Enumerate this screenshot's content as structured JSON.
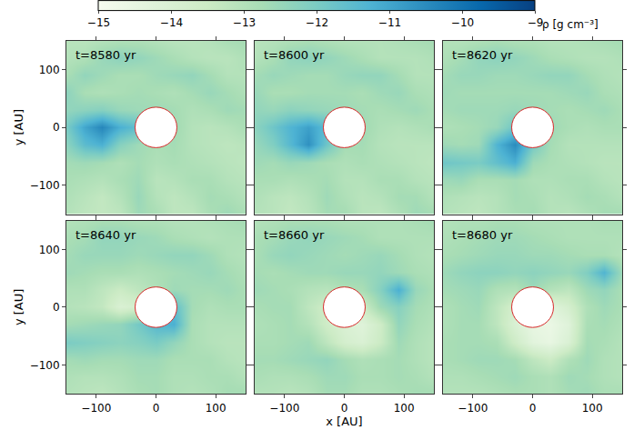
{
  "chart_data": {
    "type": "heatmap",
    "x_label": "x [AU]",
    "y_label": "y [AU]",
    "xlim": [
      -150,
      150
    ],
    "ylim": [
      -150,
      150
    ],
    "xticks": [
      -100,
      0,
      100
    ],
    "yticks": [
      -100,
      0,
      100
    ],
    "colorbar": {
      "label": "ρ [g cm⁻³]",
      "range": [
        -15,
        -9
      ],
      "ticks": [
        -15,
        -14,
        -13,
        -12,
        -11,
        -10,
        -9
      ]
    },
    "inner_boundary_radius": 35,
    "x": [
      -150,
      -120,
      -90,
      -60,
      -30,
      0,
      30,
      60,
      90,
      120,
      150
    ],
    "y": [
      -150,
      -120,
      -90,
      -60,
      -30,
      0,
      30,
      60,
      90,
      120,
      150
    ],
    "panels": [
      {
        "title": "t=8580 yr",
        "cells": [
          [
            -13.0,
            -13.2,
            -13.3,
            -13.2,
            -12.6,
            -12.8,
            -13.2,
            -13.2,
            -12.8,
            -12.6,
            -12.8
          ],
          [
            -12.9,
            -13.1,
            -13.3,
            -13.0,
            -12.5,
            -13.0,
            -13.2,
            -13.0,
            -12.7,
            -12.8,
            -13.0
          ],
          [
            -12.8,
            -12.9,
            -13.0,
            -12.8,
            -12.6,
            -13.1,
            -13.0,
            -12.8,
            -12.8,
            -13.0,
            -13.1
          ],
          [
            -12.7,
            -12.6,
            -12.7,
            -12.9,
            -12.7,
            -12.9,
            -12.8,
            -12.9,
            -13.0,
            -13.1,
            -13.2
          ],
          [
            -12.3,
            -11.5,
            -11.2,
            -12.2,
            -12.6,
            -12.8,
            -12.7,
            -13.0,
            -13.1,
            -13.2,
            -13.1
          ],
          [
            -12.0,
            -11.0,
            -10.4,
            -11.2,
            -11.6,
            -12.5,
            -12.6,
            -13.0,
            -13.1,
            -13.0,
            -12.8
          ],
          [
            -12.4,
            -12.3,
            -12.2,
            -12.5,
            -12.6,
            -12.6,
            -12.7,
            -12.9,
            -12.8,
            -12.6,
            -12.7
          ],
          [
            -12.3,
            -12.8,
            -12.9,
            -12.8,
            -12.7,
            -12.8,
            -12.9,
            -12.7,
            -12.5,
            -12.7,
            -12.9
          ],
          [
            -12.8,
            -12.4,
            -12.6,
            -12.8,
            -12.8,
            -12.6,
            -12.5,
            -12.4,
            -12.7,
            -13.0,
            -13.0
          ],
          [
            -13.0,
            -12.9,
            -12.5,
            -12.3,
            -12.4,
            -12.6,
            -12.8,
            -13.0,
            -13.1,
            -13.1,
            -12.9
          ],
          [
            -13.1,
            -13.1,
            -13.0,
            -12.9,
            -12.9,
            -13.0,
            -13.1,
            -13.1,
            -13.0,
            -12.8,
            -12.7
          ]
        ]
      },
      {
        "title": "t=8600 yr",
        "cells": [
          [
            -13.0,
            -13.1,
            -13.3,
            -13.1,
            -12.7,
            -12.7,
            -13.1,
            -13.2,
            -12.9,
            -12.6,
            -12.7
          ],
          [
            -12.9,
            -13.1,
            -13.2,
            -13.0,
            -12.6,
            -12.9,
            -13.1,
            -13.0,
            -12.7,
            -12.7,
            -13.0
          ],
          [
            -12.8,
            -12.8,
            -12.9,
            -12.8,
            -12.7,
            -13.0,
            -13.0,
            -12.8,
            -12.8,
            -13.0,
            -13.1
          ],
          [
            -12.6,
            -12.7,
            -12.5,
            -12.6,
            -12.8,
            -12.9,
            -12.8,
            -12.9,
            -13.0,
            -13.1,
            -13.2
          ],
          [
            -12.5,
            -12.1,
            -11.4,
            -10.6,
            -11.8,
            -12.7,
            -12.7,
            -13.0,
            -13.1,
            -13.1,
            -13.1
          ],
          [
            -12.3,
            -11.8,
            -11.3,
            -10.9,
            -11.5,
            -12.4,
            -12.6,
            -12.9,
            -13.0,
            -12.9,
            -12.8
          ],
          [
            -12.4,
            -12.5,
            -12.3,
            -12.4,
            -12.5,
            -12.6,
            -12.7,
            -12.8,
            -12.7,
            -12.6,
            -12.8
          ],
          [
            -12.5,
            -12.8,
            -12.8,
            -12.7,
            -12.7,
            -12.7,
            -12.8,
            -12.6,
            -12.5,
            -12.8,
            -12.9
          ],
          [
            -12.7,
            -12.5,
            -12.6,
            -12.7,
            -12.7,
            -12.5,
            -12.4,
            -12.4,
            -12.7,
            -13.0,
            -13.0
          ],
          [
            -13.0,
            -12.8,
            -12.4,
            -12.3,
            -12.4,
            -12.6,
            -12.8,
            -13.0,
            -13.0,
            -13.0,
            -12.9
          ],
          [
            -13.1,
            -13.0,
            -12.9,
            -12.8,
            -12.9,
            -13.0,
            -13.0,
            -13.0,
            -12.9,
            -12.8,
            -12.7
          ]
        ]
      },
      {
        "title": "t=8620 yr",
        "cells": [
          [
            -13.0,
            -13.1,
            -13.2,
            -13.0,
            -12.8,
            -12.7,
            -13.0,
            -13.1,
            -12.9,
            -12.7,
            -12.7
          ],
          [
            -12.9,
            -13.0,
            -13.1,
            -13.0,
            -12.7,
            -12.8,
            -13.0,
            -12.9,
            -12.7,
            -12.8,
            -13.0
          ],
          [
            -12.6,
            -12.5,
            -12.8,
            -12.8,
            -12.7,
            -12.9,
            -12.9,
            -12.8,
            -12.8,
            -13.0,
            -13.1
          ],
          [
            -11.8,
            -11.9,
            -12.0,
            -11.6,
            -11.2,
            -12.6,
            -12.8,
            -12.9,
            -13.0,
            -13.1,
            -13.1
          ],
          [
            -12.6,
            -12.7,
            -12.6,
            -11.3,
            -10.5,
            -11.9,
            -12.7,
            -13.0,
            -13.0,
            -13.0,
            -13.0
          ],
          [
            -12.9,
            -12.8,
            -12.7,
            -12.5,
            -11.8,
            -12.3,
            -12.6,
            -12.8,
            -12.9,
            -12.8,
            -12.8
          ],
          [
            -12.7,
            -12.6,
            -12.6,
            -12.6,
            -12.5,
            -12.6,
            -12.7,
            -12.8,
            -12.7,
            -12.6,
            -12.8
          ],
          [
            -12.6,
            -12.7,
            -12.7,
            -12.7,
            -12.7,
            -12.7,
            -12.7,
            -12.6,
            -12.5,
            -12.8,
            -12.9
          ],
          [
            -12.7,
            -12.5,
            -12.5,
            -12.6,
            -12.6,
            -12.5,
            -12.4,
            -12.4,
            -12.7,
            -12.9,
            -13.0
          ],
          [
            -12.9,
            -12.7,
            -12.4,
            -12.3,
            -12.4,
            -12.6,
            -12.8,
            -12.9,
            -13.0,
            -13.0,
            -12.9
          ],
          [
            -13.0,
            -13.0,
            -12.9,
            -12.8,
            -12.9,
            -12.9,
            -13.0,
            -13.0,
            -12.9,
            -12.8,
            -12.7
          ]
        ]
      },
      {
        "title": "t=8640 yr",
        "cells": [
          [
            -13.0,
            -13.1,
            -13.2,
            -13.0,
            -12.8,
            -12.7,
            -12.9,
            -13.0,
            -12.9,
            -12.7,
            -12.7
          ],
          [
            -12.9,
            -13.0,
            -13.0,
            -12.9,
            -12.7,
            -12.7,
            -12.9,
            -12.9,
            -12.8,
            -12.8,
            -13.0
          ],
          [
            -12.7,
            -12.6,
            -12.7,
            -12.7,
            -12.6,
            -12.6,
            -12.8,
            -12.8,
            -12.8,
            -13.0,
            -13.1
          ],
          [
            -12.0,
            -12.1,
            -12.2,
            -12.3,
            -12.2,
            -12.0,
            -12.4,
            -12.8,
            -13.0,
            -13.1,
            -13.1
          ],
          [
            -12.7,
            -12.6,
            -12.5,
            -12.4,
            -11.9,
            -11.4,
            -11.2,
            -12.8,
            -13.0,
            -13.0,
            -13.0
          ],
          [
            -13.0,
            -13.1,
            -13.3,
            -14.0,
            -13.8,
            -12.6,
            -11.5,
            -12.7,
            -12.9,
            -12.8,
            -12.8
          ],
          [
            -12.9,
            -12.9,
            -13.2,
            -13.5,
            -13.2,
            -12.9,
            -12.6,
            -12.7,
            -12.7,
            -12.6,
            -12.8
          ],
          [
            -12.6,
            -12.7,
            -12.8,
            -12.8,
            -12.9,
            -12.8,
            -12.7,
            -12.6,
            -12.5,
            -12.7,
            -12.9
          ],
          [
            -12.7,
            -12.5,
            -12.5,
            -12.5,
            -12.6,
            -12.5,
            -12.4,
            -12.4,
            -12.6,
            -12.9,
            -13.0
          ],
          [
            -12.8,
            -12.7,
            -12.4,
            -12.4,
            -12.5,
            -12.6,
            -12.8,
            -12.9,
            -13.0,
            -12.9,
            -12.9
          ],
          [
            -13.0,
            -12.9,
            -12.8,
            -12.8,
            -12.9,
            -12.9,
            -13.0,
            -13.0,
            -12.9,
            -12.8,
            -12.7
          ]
        ]
      },
      {
        "title": "t=8660 yr",
        "cells": [
          [
            -13.0,
            -13.0,
            -13.1,
            -13.0,
            -12.7,
            -12.7,
            -12.9,
            -12.9,
            -12.8,
            -12.7,
            -12.7
          ],
          [
            -12.8,
            -12.9,
            -12.9,
            -12.8,
            -12.6,
            -12.6,
            -12.8,
            -12.8,
            -12.7,
            -12.8,
            -13.0
          ],
          [
            -12.7,
            -12.7,
            -12.6,
            -12.5,
            -12.4,
            -12.7,
            -12.9,
            -12.8,
            -12.7,
            -12.9,
            -13.1
          ],
          [
            -12.8,
            -12.8,
            -12.7,
            -12.6,
            -13.2,
            -13.8,
            -14.0,
            -13.5,
            -12.6,
            -12.9,
            -13.1
          ],
          [
            -12.9,
            -12.8,
            -12.7,
            -13.0,
            -13.6,
            -14.0,
            -14.2,
            -13.6,
            -12.4,
            -12.8,
            -13.0
          ],
          [
            -12.8,
            -12.7,
            -12.7,
            -13.2,
            -13.6,
            -13.5,
            -13.6,
            -12.6,
            -12.2,
            -12.7,
            -12.9
          ],
          [
            -12.6,
            -12.7,
            -12.8,
            -13.0,
            -13.1,
            -12.9,
            -12.8,
            -12.2,
            -11.2,
            -12.5,
            -12.8
          ],
          [
            -12.7,
            -12.8,
            -12.7,
            -12.6,
            -12.6,
            -12.5,
            -12.5,
            -12.4,
            -12.6,
            -12.8,
            -12.9
          ],
          [
            -12.8,
            -12.5,
            -12.4,
            -12.5,
            -12.6,
            -12.7,
            -12.6,
            -12.5,
            -12.7,
            -12.9,
            -13.0
          ],
          [
            -12.8,
            -12.7,
            -12.5,
            -12.4,
            -12.5,
            -12.6,
            -12.7,
            -12.9,
            -12.9,
            -12.9,
            -12.9
          ],
          [
            -13.0,
            -12.9,
            -12.8,
            -12.8,
            -12.8,
            -12.9,
            -12.9,
            -12.9,
            -12.9,
            -12.8,
            -12.7
          ]
        ]
      },
      {
        "title": "t=8680 yr",
        "cells": [
          [
            -13.0,
            -13.0,
            -13.0,
            -12.9,
            -12.8,
            -12.8,
            -12.9,
            -12.7,
            -12.6,
            -12.8,
            -12.8
          ],
          [
            -12.9,
            -12.9,
            -12.8,
            -12.7,
            -12.6,
            -12.8,
            -12.9,
            -12.6,
            -12.7,
            -12.9,
            -13.0
          ],
          [
            -12.8,
            -12.7,
            -12.6,
            -12.6,
            -12.7,
            -13.2,
            -13.5,
            -12.9,
            -12.6,
            -12.9,
            -13.0
          ],
          [
            -12.8,
            -12.7,
            -12.7,
            -12.8,
            -13.6,
            -14.3,
            -14.5,
            -14.0,
            -12.7,
            -12.8,
            -13.0
          ],
          [
            -12.9,
            -12.7,
            -12.7,
            -13.2,
            -14.0,
            -14.5,
            -14.6,
            -14.2,
            -12.8,
            -12.7,
            -12.9
          ],
          [
            -12.9,
            -12.7,
            -12.6,
            -13.2,
            -13.8,
            -14.2,
            -14.3,
            -13.8,
            -12.9,
            -12.6,
            -12.8
          ],
          [
            -12.7,
            -12.6,
            -12.5,
            -12.9,
            -13.0,
            -12.6,
            -13.0,
            -13.2,
            -12.6,
            -12.4,
            -12.8
          ],
          [
            -12.6,
            -12.4,
            -12.3,
            -12.3,
            -12.4,
            -12.3,
            -12.4,
            -12.5,
            -12.1,
            -11.3,
            -12.6
          ],
          [
            -12.8,
            -12.7,
            -12.6,
            -12.5,
            -12.5,
            -12.6,
            -12.6,
            -12.7,
            -12.8,
            -12.8,
            -13.0
          ],
          [
            -12.9,
            -12.8,
            -12.7,
            -12.6,
            -12.6,
            -12.7,
            -12.8,
            -12.9,
            -12.9,
            -12.9,
            -12.9
          ],
          [
            -13.0,
            -12.9,
            -12.9,
            -12.8,
            -12.8,
            -12.9,
            -12.9,
            -12.9,
            -12.9,
            -12.8,
            -12.8
          ]
        ]
      }
    ]
  }
}
